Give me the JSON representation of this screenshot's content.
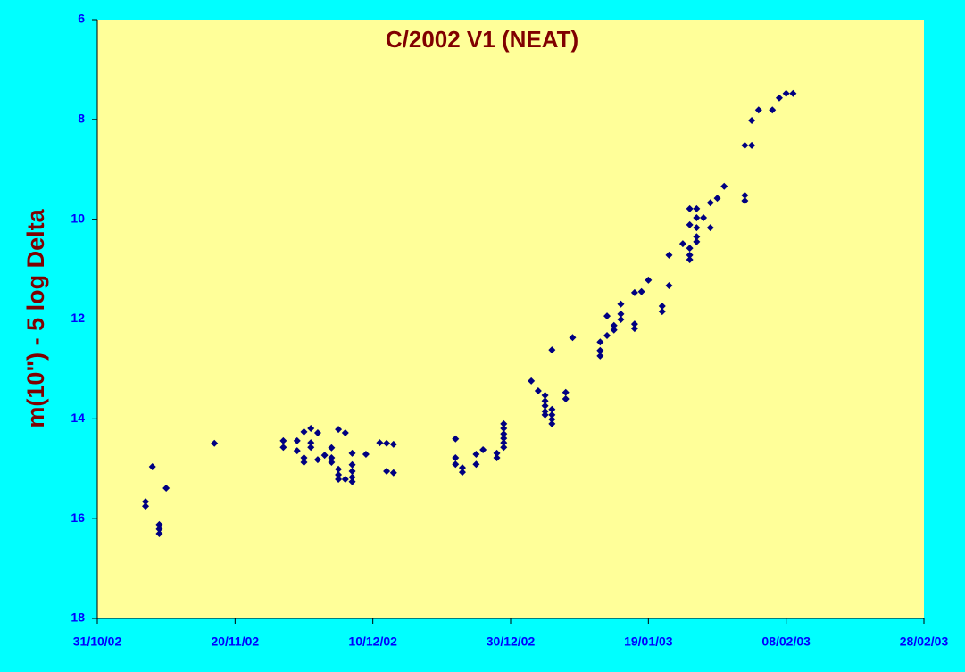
{
  "chart_data": {
    "type": "scatter",
    "title": "C/2002 V1 (NEAT)",
    "y_label": "m(10\") - 5 log Delta",
    "invert_y": true,
    "color": "#000080",
    "background": "#ffff99",
    "xlim": [
      "2002-10-31",
      "2003-02-28"
    ],
    "xticks": [
      {
        "value": "2002-10-31",
        "label": "31/10/02"
      },
      {
        "value": "2002-11-20",
        "label": "20/11/02"
      },
      {
        "value": "2002-12-10",
        "label": "10/12/02"
      },
      {
        "value": "2002-12-30",
        "label": "30/12/02"
      },
      {
        "value": "2003-01-19",
        "label": "19/01/03"
      },
      {
        "value": "2003-02-08",
        "label": "08/02/03"
      },
      {
        "value": "2003-02-28",
        "label": "28/02/03"
      }
    ],
    "ylim": [
      6,
      18
    ],
    "yticks": [
      6,
      8,
      10,
      12,
      14,
      16,
      18
    ],
    "x": [
      "2002-11-07",
      "2002-11-07",
      "2002-11-08",
      "2002-11-09",
      "2002-11-09",
      "2002-11-09",
      "2002-11-10",
      "2002-11-17",
      "2002-11-27",
      "2002-11-27",
      "2002-11-29",
      "2002-11-29",
      "2002-11-30",
      "2002-11-30",
      "2002-11-30",
      "2002-12-01",
      "2002-12-01",
      "2002-12-01",
      "2002-12-02",
      "2002-12-02",
      "2002-12-03",
      "2002-12-04",
      "2002-12-04",
      "2002-12-04",
      "2002-12-05",
      "2002-12-05",
      "2002-12-05",
      "2002-12-05",
      "2002-12-06",
      "2002-12-06",
      "2002-12-07",
      "2002-12-07",
      "2002-12-07",
      "2002-12-07",
      "2002-12-07",
      "2002-12-09",
      "2002-12-11",
      "2002-12-12",
      "2002-12-12",
      "2002-12-13",
      "2002-12-13",
      "2002-12-22",
      "2002-12-22",
      "2002-12-22",
      "2002-12-23",
      "2002-12-23",
      "2002-12-25",
      "2002-12-25",
      "2002-12-26",
      "2002-12-28",
      "2002-12-28",
      "2002-12-29",
      "2002-12-29",
      "2002-12-29",
      "2002-12-29",
      "2002-12-29",
      "2002-12-29",
      "2003-01-02",
      "2003-01-03",
      "2003-01-04",
      "2003-01-04",
      "2003-01-04",
      "2003-01-04",
      "2003-01-04",
      "2003-01-05",
      "2003-01-05",
      "2003-01-05",
      "2003-01-05",
      "2003-01-05",
      "2003-01-07",
      "2003-01-07",
      "2003-01-08",
      "2003-01-12",
      "2003-01-12",
      "2003-01-12",
      "2003-01-13",
      "2003-01-13",
      "2003-01-14",
      "2003-01-14",
      "2003-01-15",
      "2003-01-15",
      "2003-01-15",
      "2003-01-17",
      "2003-01-17",
      "2003-01-17",
      "2003-01-18",
      "2003-01-19",
      "2003-01-21",
      "2003-01-21",
      "2003-01-22",
      "2003-01-22",
      "2003-01-24",
      "2003-01-25",
      "2003-01-25",
      "2003-01-25",
      "2003-01-25",
      "2003-01-25",
      "2003-01-26",
      "2003-01-26",
      "2003-01-26",
      "2003-01-26",
      "2003-01-26",
      "2003-01-27",
      "2003-01-28",
      "2003-01-28",
      "2003-01-29",
      "2003-01-30",
      "2003-02-02",
      "2003-02-02",
      "2003-02-02",
      "2003-02-03",
      "2003-02-03",
      "2003-02-04",
      "2003-02-06",
      "2003-02-07",
      "2003-02-08",
      "2003-02-09"
    ],
    "values": [
      15.66,
      15.75,
      14.96,
      16.12,
      16.21,
      16.3,
      15.39,
      14.49,
      14.44,
      14.57,
      14.44,
      14.64,
      14.78,
      14.87,
      14.26,
      14.19,
      14.48,
      14.57,
      14.28,
      14.82,
      14.73,
      14.78,
      14.87,
      14.58,
      14.21,
      15.01,
      15.12,
      15.21,
      14.28,
      15.21,
      15.26,
      15.17,
      15.05,
      14.92,
      14.69,
      14.71,
      14.48,
      14.49,
      15.05,
      14.51,
      15.08,
      14.4,
      14.78,
      14.91,
      14.98,
      15.07,
      14.71,
      14.91,
      14.62,
      14.69,
      14.78,
      14.1,
      14.19,
      14.3,
      14.39,
      14.48,
      14.57,
      13.24,
      13.44,
      13.53,
      13.64,
      13.74,
      13.85,
      13.92,
      12.62,
      13.81,
      13.92,
      14.01,
      14.1,
      13.47,
      13.6,
      12.37,
      12.46,
      12.63,
      12.74,
      11.94,
      12.33,
      12.13,
      12.22,
      11.7,
      11.9,
      12.01,
      11.47,
      12.1,
      12.19,
      11.45,
      11.22,
      11.74,
      11.85,
      10.72,
      11.33,
      10.49,
      9.79,
      10.11,
      10.58,
      10.72,
      10.81,
      9.79,
      9.97,
      10.17,
      10.35,
      10.45,
      9.97,
      9.67,
      10.17,
      9.58,
      9.34,
      8.52,
      9.52,
      9.63,
      8.52,
      8.02,
      7.81,
      7.81,
      7.57,
      7.48,
      7.48
    ]
  }
}
